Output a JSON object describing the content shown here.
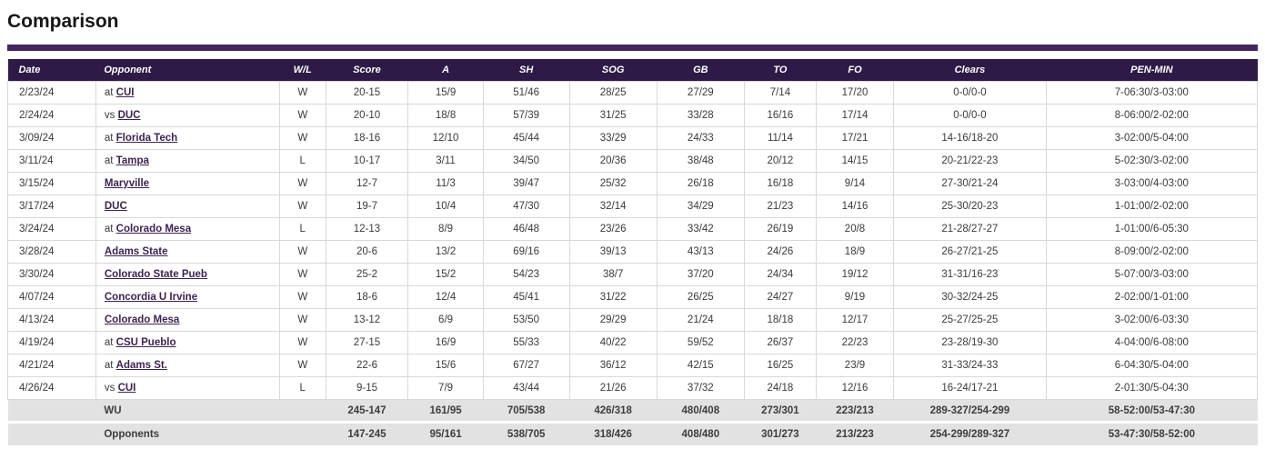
{
  "page": {
    "title": "Comparison"
  },
  "colors": {
    "accent_bar": "#44265f",
    "header_bg": "#2e1a47",
    "header_text": "#ffffff",
    "link": "#3d2352",
    "body_text": "#3a3a3a",
    "totals_bg": "#e2e2e2",
    "grid_line": "#d8d8d8"
  },
  "table": {
    "columns": [
      {
        "key": "date",
        "label": "Date"
      },
      {
        "key": "opponent",
        "label": "Opponent"
      },
      {
        "key": "wl",
        "label": "W/L"
      },
      {
        "key": "score",
        "label": "Score"
      },
      {
        "key": "a",
        "label": "A"
      },
      {
        "key": "sh",
        "label": "SH"
      },
      {
        "key": "sog",
        "label": "SOG"
      },
      {
        "key": "gb",
        "label": "GB"
      },
      {
        "key": "to",
        "label": "TO"
      },
      {
        "key": "fo",
        "label": "FO"
      },
      {
        "key": "clears",
        "label": "Clears"
      },
      {
        "key": "pen",
        "label": "PEN-MIN"
      }
    ],
    "rows": [
      {
        "date": "2/23/24",
        "prefix": "at",
        "opponent": "CUI",
        "wl": "W",
        "score": "20-15",
        "a": "15/9",
        "sh": "51/46",
        "sog": "28/25",
        "gb": "27/29",
        "to": "7/14",
        "fo": "17/20",
        "clears": "0-0/0-0",
        "pen": "7-06:30/3-03:00"
      },
      {
        "date": "2/24/24",
        "prefix": "vs",
        "opponent": "DUC",
        "wl": "W",
        "score": "20-10",
        "a": "18/8",
        "sh": "57/39",
        "sog": "31/25",
        "gb": "33/28",
        "to": "16/16",
        "fo": "17/14",
        "clears": "0-0/0-0",
        "pen": "8-06:00/2-02:00"
      },
      {
        "date": "3/09/24",
        "prefix": "at",
        "opponent": "Florida Tech",
        "wl": "W",
        "score": "18-16",
        "a": "12/10",
        "sh": "45/44",
        "sog": "33/29",
        "gb": "24/33",
        "to": "11/14",
        "fo": "17/21",
        "clears": "14-16/18-20",
        "pen": "3-02:00/5-04:00"
      },
      {
        "date": "3/11/24",
        "prefix": "at",
        "opponent": "Tampa",
        "wl": "L",
        "score": "10-17",
        "a": "3/11",
        "sh": "34/50",
        "sog": "20/36",
        "gb": "38/48",
        "to": "20/12",
        "fo": "14/15",
        "clears": "20-21/22-23",
        "pen": "5-02:30/3-02:00"
      },
      {
        "date": "3/15/24",
        "prefix": "",
        "opponent": "Maryville",
        "wl": "W",
        "score": "12-7",
        "a": "11/3",
        "sh": "39/47",
        "sog": "25/32",
        "gb": "26/18",
        "to": "16/18",
        "fo": "9/14",
        "clears": "27-30/21-24",
        "pen": "3-03:00/4-03:00"
      },
      {
        "date": "3/17/24",
        "prefix": "",
        "opponent": "DUC",
        "wl": "W",
        "score": "19-7",
        "a": "10/4",
        "sh": "47/30",
        "sog": "32/14",
        "gb": "34/29",
        "to": "21/23",
        "fo": "14/16",
        "clears": "25-30/20-23",
        "pen": "1-01:00/2-02:00"
      },
      {
        "date": "3/24/24",
        "prefix": "at",
        "opponent": "Colorado Mesa",
        "wl": "L",
        "score": "12-13",
        "a": "8/9",
        "sh": "46/48",
        "sog": "23/26",
        "gb": "33/42",
        "to": "26/19",
        "fo": "20/8",
        "clears": "21-28/27-27",
        "pen": "1-01:00/6-05:30"
      },
      {
        "date": "3/28/24",
        "prefix": "",
        "opponent": "Adams State",
        "wl": "W",
        "score": "20-6",
        "a": "13/2",
        "sh": "69/16",
        "sog": "39/13",
        "gb": "43/13",
        "to": "24/26",
        "fo": "18/9",
        "clears": "26-27/21-25",
        "pen": "8-09:00/2-02:00"
      },
      {
        "date": "3/30/24",
        "prefix": "",
        "opponent": "Colorado State Pueb",
        "wl": "W",
        "score": "25-2",
        "a": "15/2",
        "sh": "54/23",
        "sog": "38/7",
        "gb": "37/20",
        "to": "24/34",
        "fo": "19/12",
        "clears": "31-31/16-23",
        "pen": "5-07:00/3-03:00"
      },
      {
        "date": "4/07/24",
        "prefix": "",
        "opponent": "Concordia U Irvine",
        "wl": "W",
        "score": "18-6",
        "a": "12/4",
        "sh": "45/41",
        "sog": "31/22",
        "gb": "26/25",
        "to": "24/27",
        "fo": "9/19",
        "clears": "30-32/24-25",
        "pen": "2-02:00/1-01:00"
      },
      {
        "date": "4/13/24",
        "prefix": "",
        "opponent": "Colorado Mesa",
        "wl": "W",
        "score": "13-12",
        "a": "6/9",
        "sh": "53/50",
        "sog": "29/29",
        "gb": "21/24",
        "to": "18/18",
        "fo": "12/17",
        "clears": "25-27/25-25",
        "pen": "3-02:00/6-03:30"
      },
      {
        "date": "4/19/24",
        "prefix": "at",
        "opponent": "CSU Pueblo",
        "wl": "W",
        "score": "27-15",
        "a": "16/9",
        "sh": "55/33",
        "sog": "40/22",
        "gb": "59/52",
        "to": "26/37",
        "fo": "22/23",
        "clears": "23-28/19-30",
        "pen": "4-04:00/6-08:00"
      },
      {
        "date": "4/21/24",
        "prefix": "at",
        "opponent": "Adams St.",
        "wl": "W",
        "score": "22-6",
        "a": "15/6",
        "sh": "67/27",
        "sog": "36/12",
        "gb": "42/15",
        "to": "16/25",
        "fo": "23/9",
        "clears": "31-33/24-33",
        "pen": "6-04:30/5-04:00"
      },
      {
        "date": "4/26/24",
        "prefix": "vs",
        "opponent": "CUI",
        "wl": "L",
        "score": "9-15",
        "a": "7/9",
        "sh": "43/44",
        "sog": "21/26",
        "gb": "37/32",
        "to": "24/18",
        "fo": "12/16",
        "clears": "16-24/17-21",
        "pen": "2-01:30/5-04:30"
      }
    ],
    "totals": [
      {
        "label": "WU",
        "score": "245-147",
        "a": "161/95",
        "sh": "705/538",
        "sog": "426/318",
        "gb": "480/408",
        "to": "273/301",
        "fo": "223/213",
        "clears": "289-327/254-299",
        "pen": "58-52:00/53-47:30"
      },
      {
        "label": "Opponents",
        "score": "147-245",
        "a": "95/161",
        "sh": "538/705",
        "sog": "318/426",
        "gb": "408/480",
        "to": "301/273",
        "fo": "213/223",
        "clears": "254-299/289-327",
        "pen": "53-47:30/58-52:00"
      }
    ]
  }
}
